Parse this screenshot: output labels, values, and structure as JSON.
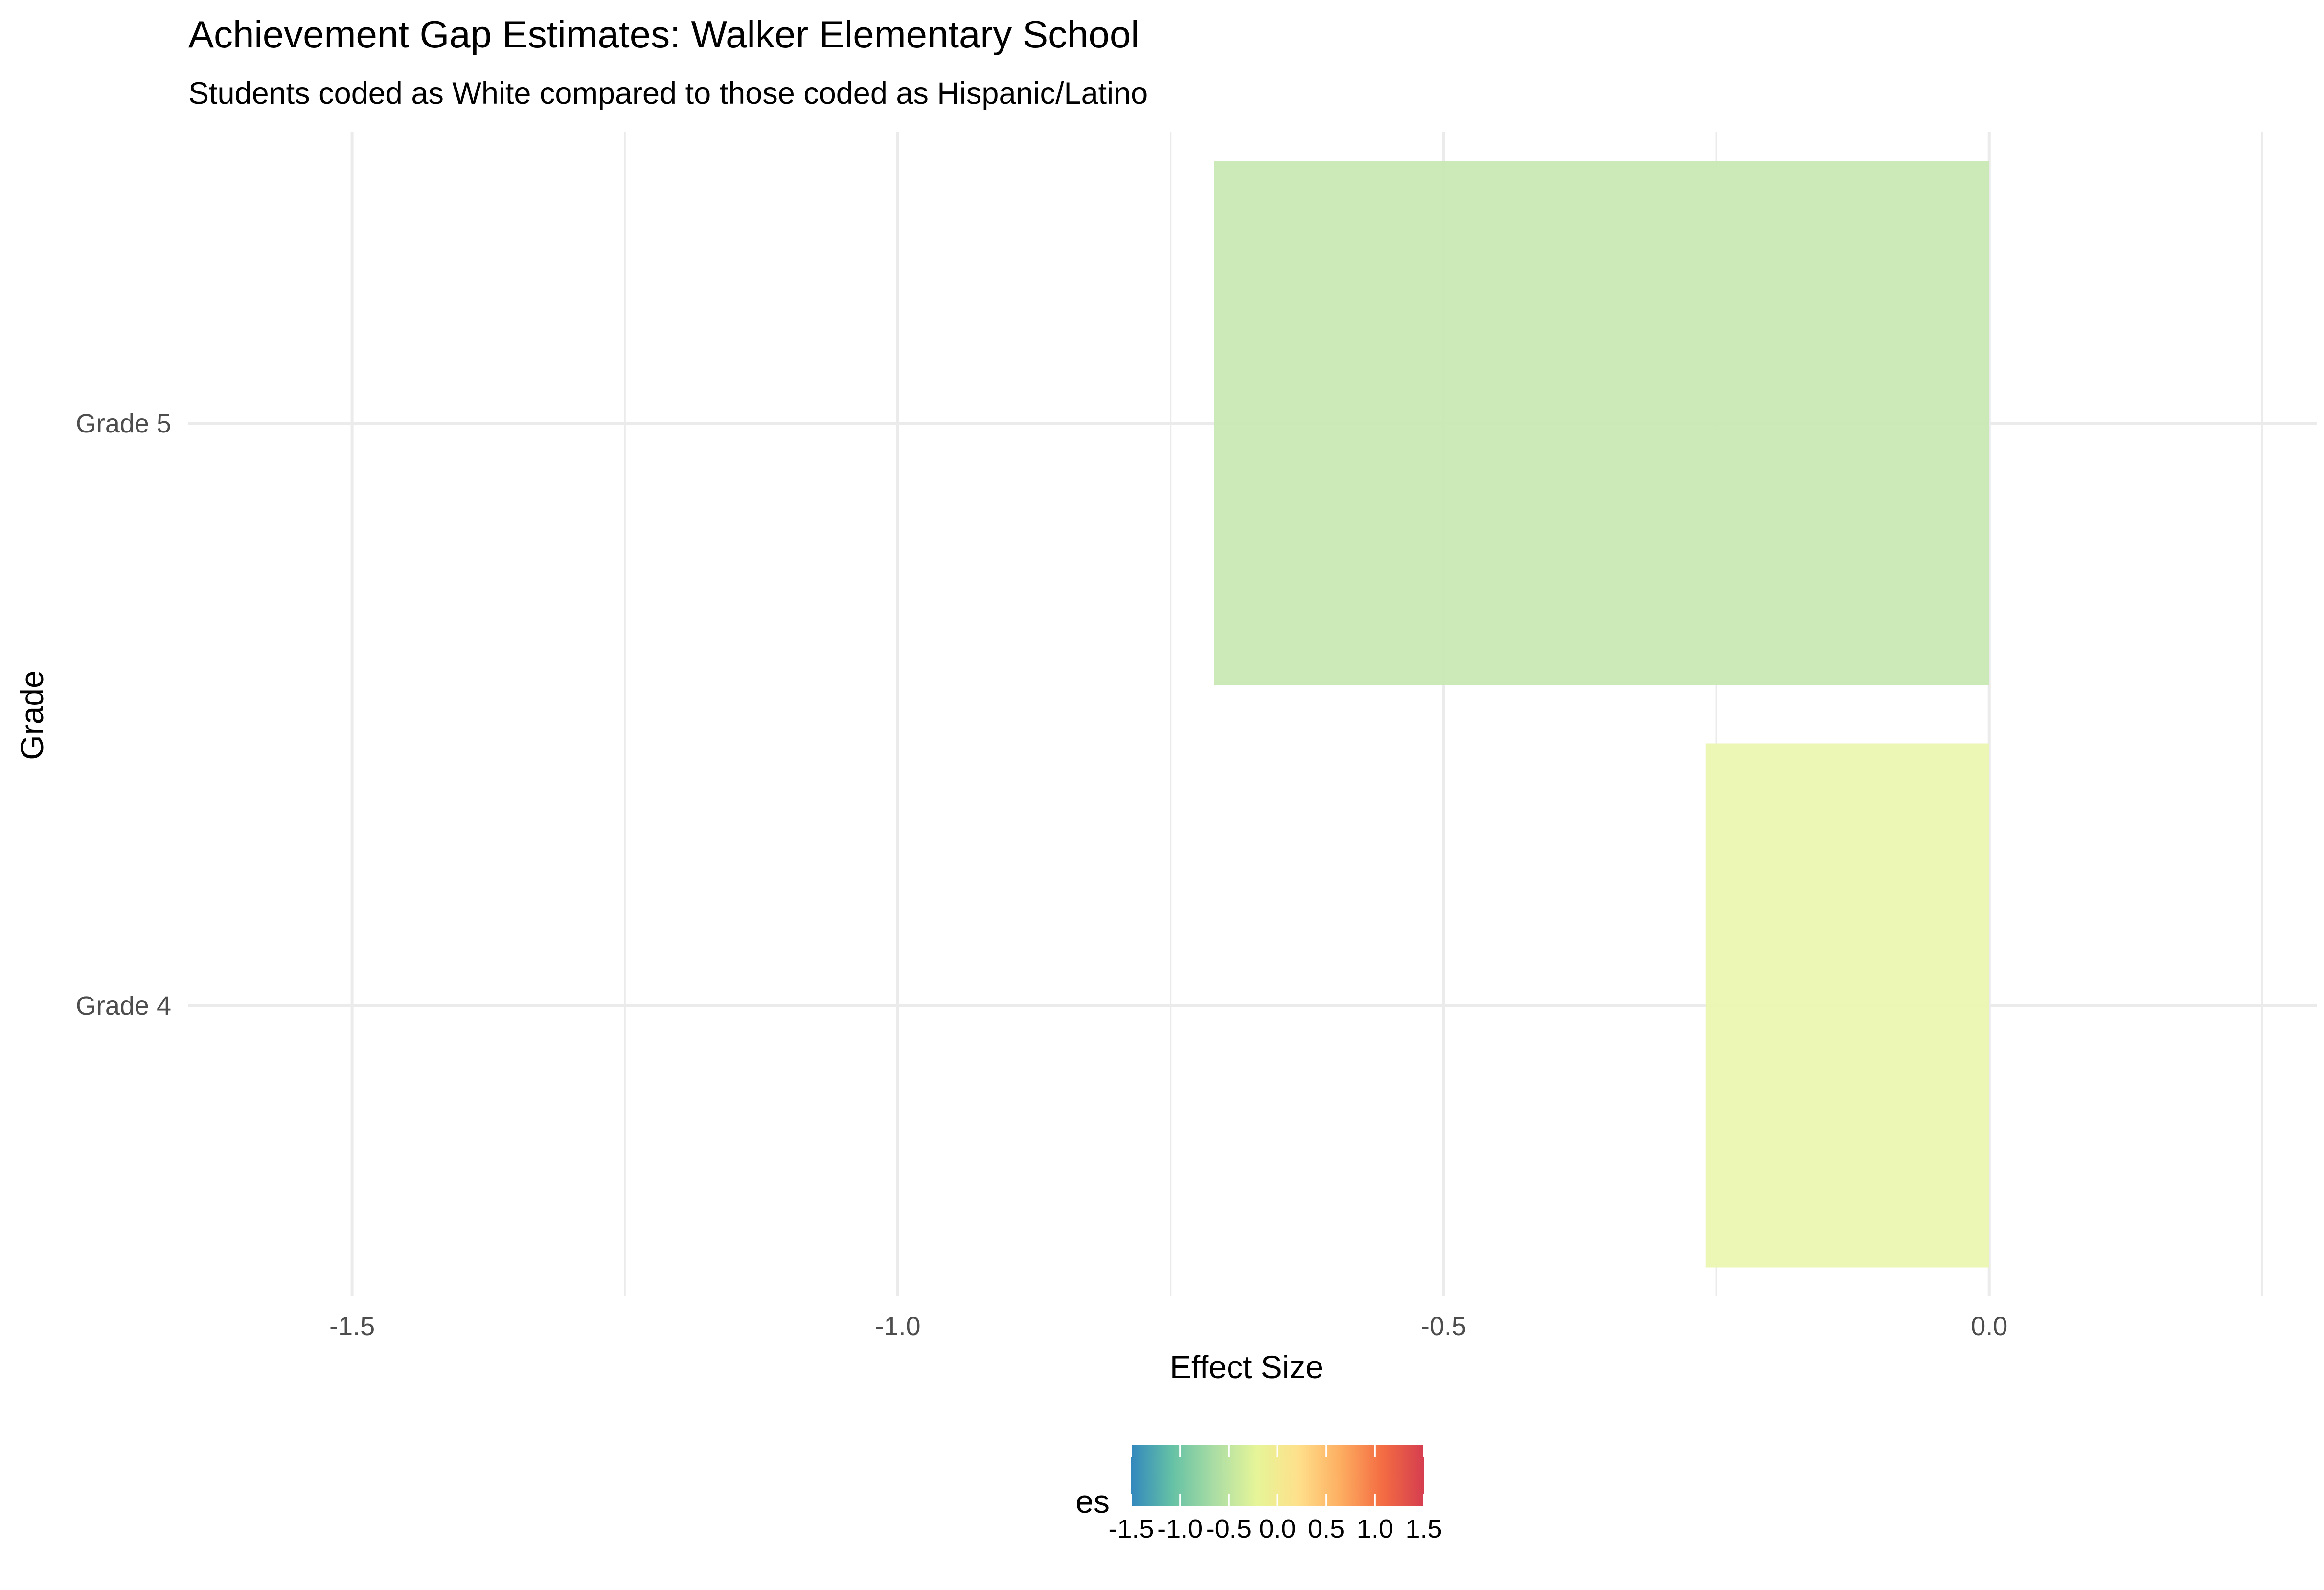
{
  "chart_data": {
    "type": "bar",
    "orientation": "horizontal",
    "title": "Achievement Gap Estimates: Walker Elementary School",
    "subtitle": "Students coded as White compared to those coded as Hispanic/Latino",
    "xlabel": "Effect Size",
    "ylabel": "Grade",
    "categories": [
      "Grade 4",
      "Grade 5"
    ],
    "values": [
      -0.26,
      -0.71
    ],
    "bar_colors": [
      "#ebf6b1",
      "#c9e9b3"
    ],
    "xlim": [
      -1.65,
      0.3
    ],
    "x_ticks": [
      -1.5,
      -1.0,
      -0.5,
      0.0
    ],
    "x_tick_labels": [
      "-1.5",
      "-1.0",
      "-0.5",
      "0.0"
    ],
    "grid": true,
    "legend": {
      "title": "es",
      "position": "bottom",
      "type": "colorbar",
      "palette": "Spectral",
      "range": [
        -1.5,
        1.5
      ],
      "breaks": [
        -1.5,
        -1.0,
        -0.5,
        0.0,
        0.5,
        1.0,
        1.5
      ],
      "labels": [
        "-1.5",
        "-1.0",
        "-0.5",
        "0.0",
        "0.5",
        "1.0",
        "1.5"
      ],
      "colors": [
        "#3288bd",
        "#66c2a5",
        "#abdda4",
        "#e6f598",
        "#fee08b",
        "#fdae61",
        "#f46d43",
        "#d53e4f"
      ]
    }
  }
}
